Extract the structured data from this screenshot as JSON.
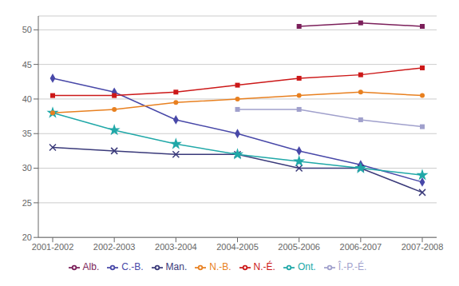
{
  "chart_data": {
    "type": "line",
    "categories": [
      "2001-2002",
      "2002-2003",
      "2003-2004",
      "2004-2005",
      "2005-2006",
      "2006-2007",
      "2007-2008"
    ],
    "series": [
      {
        "name": "C.-B.",
        "color": "#4848a8",
        "marker": "diamond",
        "values": [
          43.0,
          41.0,
          37.0,
          35.0,
          32.5,
          30.5,
          28.0
        ]
      },
      {
        "name": "Alb.",
        "color": "#7b1f5a",
        "marker": "square",
        "values": [
          null,
          null,
          null,
          null,
          50.5,
          51.0,
          50.5
        ]
      },
      {
        "name": "Man.",
        "color": "#3a3a7a",
        "marker": "x",
        "values": [
          33.0,
          32.5,
          32.0,
          32.0,
          30.0,
          30.0,
          26.5
        ]
      },
      {
        "name": "Ont.",
        "color": "#20a8a8",
        "marker": "star",
        "values": [
          38.0,
          35.5,
          33.5,
          32.0,
          31.0,
          30.0,
          29.0
        ]
      },
      {
        "name": "N.-B.",
        "color": "#e88020",
        "marker": "circle",
        "values": [
          38.0,
          38.5,
          39.5,
          40.0,
          40.5,
          41.0,
          40.5
        ]
      },
      {
        "name": "Î.-P.-É.",
        "color": "#a0a0cc",
        "marker": "square",
        "values": [
          null,
          null,
          null,
          38.5,
          38.5,
          37.0,
          36.0
        ]
      },
      {
        "name": "N.-É.",
        "color": "#cc1818",
        "marker": "square",
        "values": [
          40.5,
          40.5,
          41.0,
          42.0,
          43.0,
          43.5,
          44.5
        ]
      }
    ],
    "ylim": [
      20,
      52
    ],
    "yticks": [
      20,
      25,
      30,
      35,
      40,
      45,
      50
    ],
    "grid": true,
    "legend": "bottom"
  }
}
